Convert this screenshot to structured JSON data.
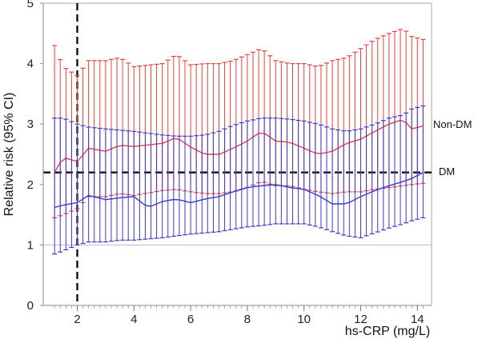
{
  "chart_data": {
    "type": "line",
    "title": "",
    "xlabel": "hs-CRP (mg/L)",
    "ylabel": "Relative risk (95% CI)",
    "xlim": [
      0.8,
      14.5
    ],
    "ylim": [
      0,
      5
    ],
    "x_ticks": [
      2,
      4,
      6,
      8,
      10,
      12,
      14
    ],
    "y_ticks": [
      0,
      1,
      2,
      3,
      4,
      5
    ],
    "x_tick_labels": [
      "2",
      "4",
      "6",
      "8",
      "10",
      "12",
      "14"
    ],
    "y_tick_labels": [
      "0",
      "1",
      "2",
      "3",
      "4",
      "5"
    ],
    "reference_lines": [
      {
        "axis": "y",
        "value": 1,
        "style": "solid",
        "color": "#bdbdbd"
      },
      {
        "axis": "y",
        "value": 2.2,
        "style": "dashed",
        "color": "#111111"
      },
      {
        "axis": "x",
        "value": 2,
        "style": "dashed",
        "color": "#111111"
      }
    ],
    "grid": false,
    "series": [
      {
        "name": "Non-DM",
        "color": "#e8413c",
        "anchors": [
          [
            1.2,
            2.2,
            1.45,
            4.3
          ],
          [
            1.5,
            2.45,
            1.5,
            3.95
          ],
          [
            2.0,
            2.38,
            1.6,
            3.8
          ],
          [
            2.4,
            2.6,
            1.8,
            4.05
          ],
          [
            3.0,
            2.55,
            1.8,
            4.05
          ],
          [
            3.5,
            2.65,
            1.85,
            4.1
          ],
          [
            4.0,
            2.63,
            1.82,
            3.95
          ],
          [
            5.0,
            2.68,
            1.9,
            4.0
          ],
          [
            5.5,
            2.78,
            1.92,
            4.15
          ],
          [
            6.0,
            2.62,
            1.88,
            3.98
          ],
          [
            6.5,
            2.5,
            1.85,
            4.0
          ],
          [
            7.0,
            2.5,
            1.85,
            4.0
          ],
          [
            7.5,
            2.6,
            1.88,
            4.05
          ],
          [
            8.0,
            2.72,
            1.95,
            4.15
          ],
          [
            8.5,
            2.88,
            2.05,
            4.25
          ],
          [
            9.0,
            2.72,
            1.98,
            4.05
          ],
          [
            9.5,
            2.7,
            1.98,
            4.0
          ],
          [
            10.0,
            2.6,
            1.92,
            4.0
          ],
          [
            10.5,
            2.5,
            1.88,
            3.95
          ],
          [
            11.0,
            2.55,
            1.85,
            4.05
          ],
          [
            11.5,
            2.68,
            1.88,
            4.1
          ],
          [
            12.0,
            2.75,
            1.88,
            4.25
          ],
          [
            12.5,
            2.88,
            1.92,
            4.4
          ],
          [
            13.0,
            3.0,
            1.95,
            4.5
          ],
          [
            13.5,
            3.08,
            1.98,
            4.58
          ],
          [
            13.8,
            2.92,
            2.0,
            4.45
          ],
          [
            14.2,
            2.97,
            2.02,
            4.4
          ]
        ]
      },
      {
        "name": "DM",
        "color": "#3a3acf",
        "anchors": [
          [
            1.2,
            1.62,
            0.85,
            3.1
          ],
          [
            1.5,
            1.66,
            0.9,
            3.1
          ],
          [
            2.0,
            1.7,
            1.0,
            3.0
          ],
          [
            2.4,
            1.82,
            1.05,
            2.95
          ],
          [
            3.0,
            1.75,
            1.05,
            2.92
          ],
          [
            3.5,
            1.78,
            1.08,
            2.9
          ],
          [
            4.0,
            1.8,
            1.08,
            2.88
          ],
          [
            4.5,
            1.62,
            1.1,
            2.85
          ],
          [
            5.0,
            1.72,
            1.12,
            2.82
          ],
          [
            5.5,
            1.76,
            1.15,
            2.8
          ],
          [
            6.0,
            1.7,
            1.18,
            2.8
          ],
          [
            6.5,
            1.76,
            1.2,
            2.82
          ],
          [
            7.0,
            1.8,
            1.22,
            2.88
          ],
          [
            7.5,
            1.88,
            1.26,
            2.98
          ],
          [
            8.0,
            1.95,
            1.3,
            3.05
          ],
          [
            8.5,
            1.98,
            1.32,
            3.1
          ],
          [
            9.0,
            2.0,
            1.35,
            3.1
          ],
          [
            9.5,
            1.95,
            1.35,
            3.08
          ],
          [
            10.0,
            1.92,
            1.35,
            3.05
          ],
          [
            10.5,
            1.82,
            1.3,
            3.0
          ],
          [
            11.0,
            1.68,
            1.22,
            2.92
          ],
          [
            11.5,
            1.68,
            1.15,
            2.88
          ],
          [
            12.0,
            1.8,
            1.12,
            2.92
          ],
          [
            12.5,
            1.9,
            1.2,
            3.0
          ],
          [
            13.0,
            1.98,
            1.28,
            3.1
          ],
          [
            13.5,
            2.05,
            1.35,
            3.15
          ],
          [
            13.8,
            2.1,
            1.4,
            3.25
          ],
          [
            14.2,
            2.2,
            1.45,
            3.3
          ]
        ]
      }
    ],
    "anchor_format": [
      "x",
      "estimate",
      "ci_lower",
      "ci_upper"
    ],
    "errorbar_x_range": [
      1.2,
      14.2
    ],
    "errorbar_step": 0.2
  }
}
